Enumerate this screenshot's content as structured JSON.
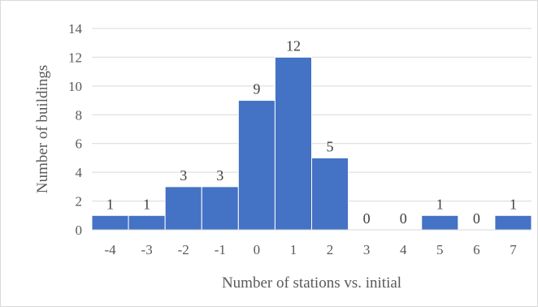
{
  "chart_data": {
    "type": "bar",
    "title": "",
    "xlabel": "Number of stations vs. initial",
    "ylabel": "Number of buildings",
    "categories": [
      "-4",
      "-3",
      "-2",
      "-1",
      "0",
      "1",
      "2",
      "3",
      "4",
      "5",
      "6",
      "7"
    ],
    "values": [
      1,
      1,
      3,
      3,
      9,
      12,
      5,
      0,
      0,
      1,
      0,
      1
    ],
    "data_labels": [
      "1",
      "1",
      "3",
      "3",
      "9",
      "12",
      "5",
      "0",
      "0",
      "1",
      "0",
      "1"
    ],
    "ylim": [
      0,
      14
    ],
    "yticks": [
      "0",
      "2",
      "4",
      "6",
      "8",
      "10",
      "12",
      "14"
    ],
    "grid": true,
    "legend": "none",
    "bar_color": "#4472c4",
    "grid_color": "#d9d9d9"
  }
}
